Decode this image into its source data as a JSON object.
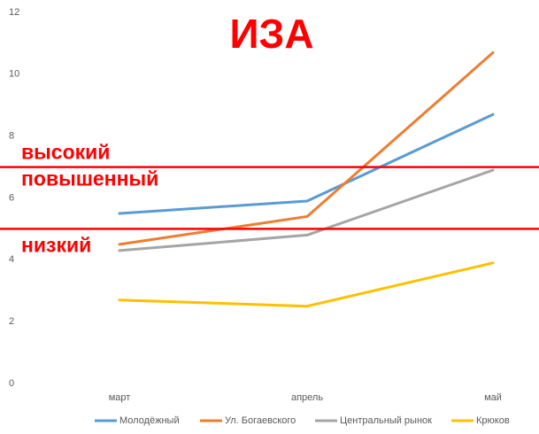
{
  "chart_data": {
    "type": "line",
    "title": "ИЗА",
    "categories": [
      "март",
      "апрель",
      "май"
    ],
    "series": [
      {
        "name": "Молодёжный",
        "color": "#5b9bd5",
        "values": [
          5.5,
          5.9,
          8.7
        ]
      },
      {
        "name": "Ул. Богаевского",
        "color": "#ed7d31",
        "values": [
          4.5,
          5.4,
          10.7
        ]
      },
      {
        "name": "Центральный рынок",
        "color": "#a5a5a5",
        "values": [
          4.3,
          4.8,
          6.9
        ]
      },
      {
        "name": "Крюков",
        "color": "#ffc000",
        "values": [
          2.7,
          2.5,
          3.9
        ]
      }
    ],
    "ylim": [
      0,
      12
    ],
    "yticks": [
      0,
      2,
      4,
      6,
      8,
      10,
      12
    ],
    "grid": false,
    "reference_lines": [
      {
        "value": 7,
        "color": "#ff0000"
      },
      {
        "value": 5,
        "color": "#ff0000"
      }
    ],
    "zone_labels": [
      "высокий",
      "повышенный",
      "низкий"
    ],
    "legend": "bottom"
  }
}
